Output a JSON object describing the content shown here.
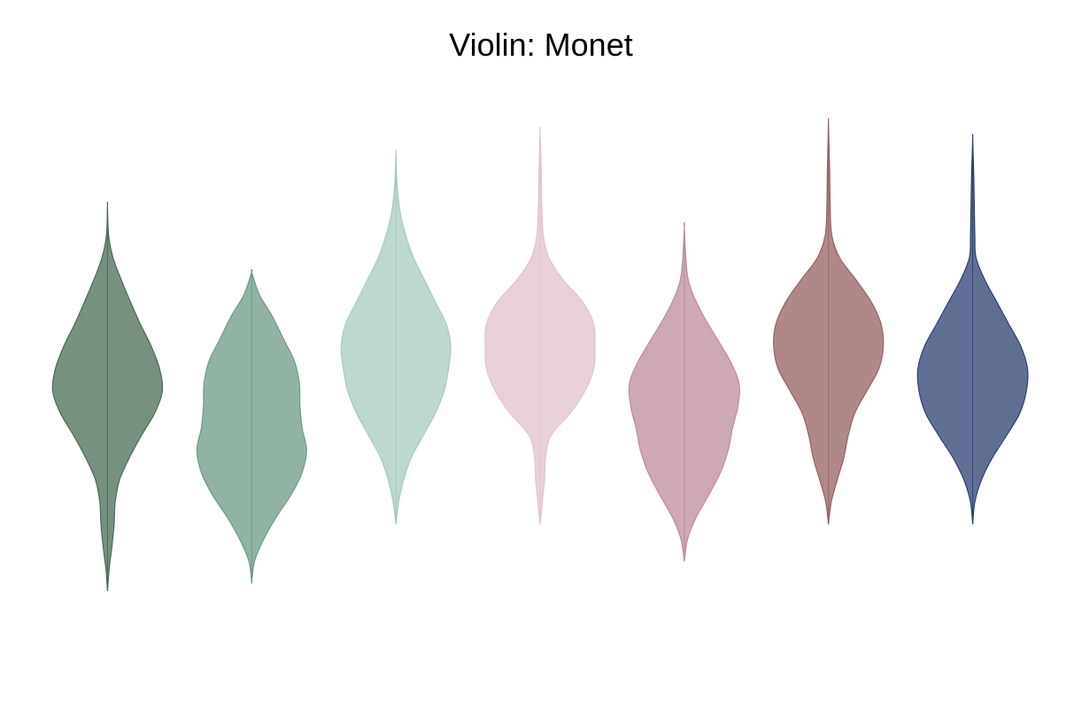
{
  "chart_data": {
    "type": "violin",
    "title": "Violin: Monet",
    "xlabel": "",
    "ylabel": "",
    "grid": false,
    "legend": "none",
    "axes_visible": false,
    "ylim": [
      -4,
      4
    ],
    "series": [
      {
        "color": "#4a6b55",
        "min": -2.9,
        "max": 2.3,
        "profile": [
          [
            -2.9,
            0
          ],
          [
            -2.6,
            0.03
          ],
          [
            -2.3,
            0.08
          ],
          [
            -2.0,
            0.12
          ],
          [
            -1.7,
            0.14
          ],
          [
            -1.4,
            0.22
          ],
          [
            -1.1,
            0.4
          ],
          [
            -0.8,
            0.62
          ],
          [
            -0.5,
            0.86
          ],
          [
            -0.2,
            1.0
          ],
          [
            0.1,
            0.95
          ],
          [
            0.4,
            0.8
          ],
          [
            0.7,
            0.6
          ],
          [
            1.0,
            0.42
          ],
          [
            1.3,
            0.25
          ],
          [
            1.6,
            0.1
          ],
          [
            1.9,
            0.02
          ],
          [
            2.3,
            0
          ]
        ]
      },
      {
        "color": "#6d9a85",
        "min": -2.8,
        "max": 1.4,
        "profile": [
          [
            -2.8,
            0
          ],
          [
            -2.5,
            0.05
          ],
          [
            -2.2,
            0.22
          ],
          [
            -1.9,
            0.45
          ],
          [
            -1.6,
            0.72
          ],
          [
            -1.3,
            0.92
          ],
          [
            -1.0,
            1.0
          ],
          [
            -0.7,
            0.92
          ],
          [
            -0.4,
            0.88
          ],
          [
            -0.1,
            0.87
          ],
          [
            0.2,
            0.78
          ],
          [
            0.5,
            0.58
          ],
          [
            0.8,
            0.38
          ],
          [
            1.1,
            0.14
          ],
          [
            1.4,
            0
          ]
        ]
      },
      {
        "color": "#a8cbbd",
        "min": -2.0,
        "max": 3.0,
        "profile": [
          [
            -2.0,
            0
          ],
          [
            -1.7,
            0.05
          ],
          [
            -1.4,
            0.14
          ],
          [
            -1.1,
            0.28
          ],
          [
            -0.8,
            0.5
          ],
          [
            -0.5,
            0.72
          ],
          [
            -0.2,
            0.88
          ],
          [
            0.1,
            0.96
          ],
          [
            0.4,
            1.0
          ],
          [
            0.7,
            0.92
          ],
          [
            1.0,
            0.72
          ],
          [
            1.3,
            0.52
          ],
          [
            1.6,
            0.32
          ],
          [
            1.9,
            0.18
          ],
          [
            2.2,
            0.08
          ],
          [
            2.6,
            0.02
          ],
          [
            3.0,
            0
          ]
        ]
      },
      {
        "color": "#e0c3cb",
        "min": -2.0,
        "max": 3.3,
        "profile": [
          [
            -2.0,
            0
          ],
          [
            -1.7,
            0.04
          ],
          [
            -1.4,
            0.08
          ],
          [
            -1.1,
            0.1
          ],
          [
            -0.8,
            0.2
          ],
          [
            -0.5,
            0.55
          ],
          [
            -0.2,
            0.82
          ],
          [
            0.1,
            0.98
          ],
          [
            0.4,
            1.0
          ],
          [
            0.7,
            0.98
          ],
          [
            1.0,
            0.78
          ],
          [
            1.3,
            0.42
          ],
          [
            1.6,
            0.16
          ],
          [
            1.9,
            0.06
          ],
          [
            2.3,
            0.03
          ],
          [
            2.8,
            0.02
          ],
          [
            3.3,
            0
          ]
        ]
      },
      {
        "color": "#bc8c99",
        "min": -2.5,
        "max": 2.0,
        "profile": [
          [
            -2.5,
            0
          ],
          [
            -2.2,
            0.06
          ],
          [
            -1.9,
            0.22
          ],
          [
            -1.6,
            0.45
          ],
          [
            -1.3,
            0.66
          ],
          [
            -1.0,
            0.8
          ],
          [
            -0.7,
            0.88
          ],
          [
            -0.4,
            0.98
          ],
          [
            -0.1,
            1.0
          ],
          [
            0.2,
            0.84
          ],
          [
            0.5,
            0.6
          ],
          [
            0.8,
            0.36
          ],
          [
            1.1,
            0.16
          ],
          [
            1.4,
            0.05
          ],
          [
            2.0,
            0
          ]
        ]
      },
      {
        "color": "#946163",
        "min": -2.0,
        "max": 3.4,
        "profile": [
          [
            -2.0,
            0
          ],
          [
            -1.7,
            0.05
          ],
          [
            -1.4,
            0.16
          ],
          [
            -1.1,
            0.28
          ],
          [
            -0.8,
            0.36
          ],
          [
            -0.5,
            0.48
          ],
          [
            -0.2,
            0.7
          ],
          [
            0.1,
            0.92
          ],
          [
            0.4,
            1.0
          ],
          [
            0.7,
            0.96
          ],
          [
            1.0,
            0.78
          ],
          [
            1.3,
            0.5
          ],
          [
            1.6,
            0.2
          ],
          [
            1.9,
            0.06
          ],
          [
            2.3,
            0.03
          ],
          [
            2.8,
            0.02
          ],
          [
            3.4,
            0
          ]
        ]
      },
      {
        "color": "#2e3f72",
        "min": -2.0,
        "max": 3.2,
        "profile": [
          [
            -2.0,
            0
          ],
          [
            -1.7,
            0.04
          ],
          [
            -1.4,
            0.16
          ],
          [
            -1.1,
            0.36
          ],
          [
            -0.8,
            0.62
          ],
          [
            -0.5,
            0.86
          ],
          [
            -0.2,
            0.98
          ],
          [
            0.1,
            1.0
          ],
          [
            0.4,
            0.88
          ],
          [
            0.7,
            0.66
          ],
          [
            1.0,
            0.44
          ],
          [
            1.3,
            0.22
          ],
          [
            1.6,
            0.06
          ],
          [
            1.9,
            0.04
          ],
          [
            2.3,
            0.03
          ],
          [
            2.7,
            0.02
          ],
          [
            3.2,
            0
          ]
        ]
      }
    ]
  }
}
